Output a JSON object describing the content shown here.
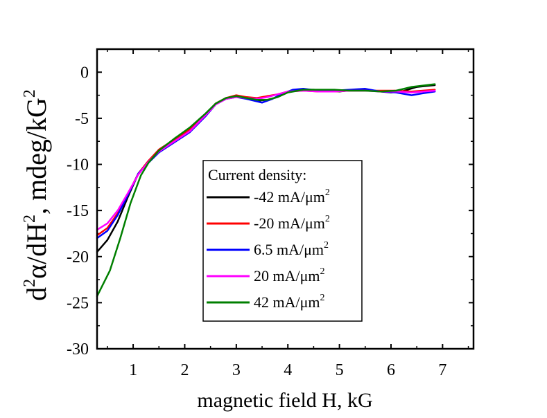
{
  "chart_data": {
    "type": "line",
    "xlabel": "magnetic field H, kG",
    "ylabel": "d²α/dH², mdeg/kG²",
    "ylabel_parts": {
      "a": "d",
      "b": "2",
      "c": "α/dH",
      "d": "2",
      "e": ", mdeg/kG",
      "f": "2"
    },
    "xlim": [
      0.3,
      7.6
    ],
    "ylim": [
      -30,
      2.5
    ],
    "xticks": [
      1,
      2,
      3,
      4,
      5,
      6,
      7
    ],
    "yticks": [
      0,
      -5,
      -10,
      -15,
      -20,
      -25,
      -30
    ],
    "grid": false,
    "legend": {
      "title": "Current density:",
      "placement": "center"
    },
    "series": [
      {
        "name": "-42 mA/μm²",
        "name_main": "-42 mA/μm",
        "name_sup": "2",
        "color": "#000000",
        "points": [
          [
            0.3,
            -19.5
          ],
          [
            0.5,
            -18.2
          ],
          [
            0.7,
            -16.2
          ],
          [
            0.9,
            -13.5
          ],
          [
            1.1,
            -11.0
          ],
          [
            1.3,
            -9.6
          ],
          [
            1.5,
            -8.4
          ],
          [
            1.8,
            -7.3
          ],
          [
            2.1,
            -6.2
          ],
          [
            2.4,
            -4.6
          ],
          [
            2.6,
            -3.4
          ],
          [
            2.8,
            -2.8
          ],
          [
            3.0,
            -2.6
          ],
          [
            3.2,
            -2.8
          ],
          [
            3.4,
            -3.1
          ],
          [
            3.6,
            -3.0
          ],
          [
            3.8,
            -2.7
          ],
          [
            4.0,
            -2.1
          ],
          [
            4.2,
            -1.9
          ],
          [
            4.5,
            -1.9
          ],
          [
            4.8,
            -2.0
          ],
          [
            5.0,
            -2.1
          ],
          [
            5.3,
            -1.9
          ],
          [
            5.6,
            -2.0
          ],
          [
            6.0,
            -2.2
          ],
          [
            6.2,
            -2.1
          ],
          [
            6.5,
            -1.6
          ],
          [
            6.85,
            -1.4
          ]
        ]
      },
      {
        "name": "-20 mA/μm²",
        "name_main": "-20 mA/μm",
        "name_sup": "2",
        "color": "#ff0000",
        "points": [
          [
            0.3,
            -17.7
          ],
          [
            0.5,
            -16.9
          ],
          [
            0.7,
            -15.3
          ],
          [
            0.9,
            -13.2
          ],
          [
            1.1,
            -11.0
          ],
          [
            1.3,
            -9.6
          ],
          [
            1.5,
            -8.4
          ],
          [
            1.8,
            -7.3
          ],
          [
            2.1,
            -6.2
          ],
          [
            2.4,
            -4.6
          ],
          [
            2.6,
            -3.4
          ],
          [
            2.8,
            -2.8
          ],
          [
            3.0,
            -2.5
          ],
          [
            3.2,
            -2.7
          ],
          [
            3.4,
            -2.8
          ],
          [
            3.6,
            -2.6
          ],
          [
            3.8,
            -2.4
          ],
          [
            4.0,
            -2.1
          ],
          [
            4.3,
            -2.0
          ],
          [
            4.6,
            -2.1
          ],
          [
            4.9,
            -2.1
          ],
          [
            5.2,
            -2.0
          ],
          [
            5.5,
            -2.0
          ],
          [
            5.8,
            -2.0
          ],
          [
            6.1,
            -2.0
          ],
          [
            6.4,
            -2.1
          ],
          [
            6.85,
            -1.9
          ]
        ]
      },
      {
        "name": "6.5 mA/μm²",
        "name_main": "6.5 mA/μm",
        "name_sup": "2",
        "color": "#0000ff",
        "points": [
          [
            0.3,
            -18.0
          ],
          [
            0.5,
            -17.2
          ],
          [
            0.7,
            -15.5
          ],
          [
            0.9,
            -13.3
          ],
          [
            1.1,
            -11.0
          ],
          [
            1.3,
            -9.8
          ],
          [
            1.5,
            -8.7
          ],
          [
            1.8,
            -7.6
          ],
          [
            2.1,
            -6.5
          ],
          [
            2.4,
            -4.8
          ],
          [
            2.6,
            -3.5
          ],
          [
            2.8,
            -2.9
          ],
          [
            3.0,
            -2.7
          ],
          [
            3.2,
            -2.9
          ],
          [
            3.5,
            -3.3
          ],
          [
            3.7,
            -2.9
          ],
          [
            3.9,
            -2.3
          ],
          [
            4.1,
            -1.9
          ],
          [
            4.3,
            -1.8
          ],
          [
            4.6,
            -2.0
          ],
          [
            4.9,
            -2.0
          ],
          [
            5.2,
            -1.9
          ],
          [
            5.5,
            -1.8
          ],
          [
            5.8,
            -2.1
          ],
          [
            6.1,
            -2.2
          ],
          [
            6.4,
            -2.5
          ],
          [
            6.6,
            -2.3
          ],
          [
            6.85,
            -2.1
          ]
        ]
      },
      {
        "name": "20 mA/μm²",
        "name_main": "20 mA/μm",
        "name_sup": "2",
        "color": "#ff00ff",
        "points": [
          [
            0.3,
            -17.1
          ],
          [
            0.5,
            -16.4
          ],
          [
            0.7,
            -15.0
          ],
          [
            0.9,
            -13.1
          ],
          [
            1.1,
            -11.1
          ],
          [
            1.3,
            -9.7
          ],
          [
            1.5,
            -8.6
          ],
          [
            1.8,
            -7.5
          ],
          [
            2.1,
            -6.4
          ],
          [
            2.4,
            -4.7
          ],
          [
            2.6,
            -3.5
          ],
          [
            2.8,
            -2.9
          ],
          [
            3.0,
            -2.7
          ],
          [
            3.2,
            -2.8
          ],
          [
            3.4,
            -2.9
          ],
          [
            3.6,
            -2.7
          ],
          [
            3.8,
            -2.4
          ],
          [
            4.0,
            -2.1
          ],
          [
            4.3,
            -2.0
          ],
          [
            4.6,
            -2.1
          ],
          [
            4.9,
            -2.1
          ],
          [
            5.2,
            -2.0
          ],
          [
            5.5,
            -2.0
          ],
          [
            5.8,
            -2.1
          ],
          [
            6.1,
            -2.1
          ],
          [
            6.4,
            -2.2
          ],
          [
            6.85,
            -2.0
          ]
        ]
      },
      {
        "name": "42 mA/μm²",
        "name_main": "42 mA/μm",
        "name_sup": "2",
        "color": "#007f00",
        "points": [
          [
            0.3,
            -24.3
          ],
          [
            0.55,
            -21.5
          ],
          [
            0.75,
            -18.0
          ],
          [
            0.95,
            -14.2
          ],
          [
            1.15,
            -11.2
          ],
          [
            1.3,
            -9.8
          ],
          [
            1.5,
            -8.5
          ],
          [
            1.8,
            -7.2
          ],
          [
            2.1,
            -6.0
          ],
          [
            2.4,
            -4.5
          ],
          [
            2.6,
            -3.4
          ],
          [
            2.8,
            -2.8
          ],
          [
            3.0,
            -2.6
          ],
          [
            3.2,
            -2.8
          ],
          [
            3.4,
            -3.0
          ],
          [
            3.6,
            -3.0
          ],
          [
            3.8,
            -2.7
          ],
          [
            4.0,
            -2.2
          ],
          [
            4.3,
            -1.9
          ],
          [
            4.6,
            -1.9
          ],
          [
            4.9,
            -1.9
          ],
          [
            5.2,
            -2.0
          ],
          [
            5.5,
            -2.0
          ],
          [
            5.8,
            -2.1
          ],
          [
            6.1,
            -2.0
          ],
          [
            6.4,
            -1.6
          ],
          [
            6.85,
            -1.3
          ]
        ]
      }
    ]
  }
}
